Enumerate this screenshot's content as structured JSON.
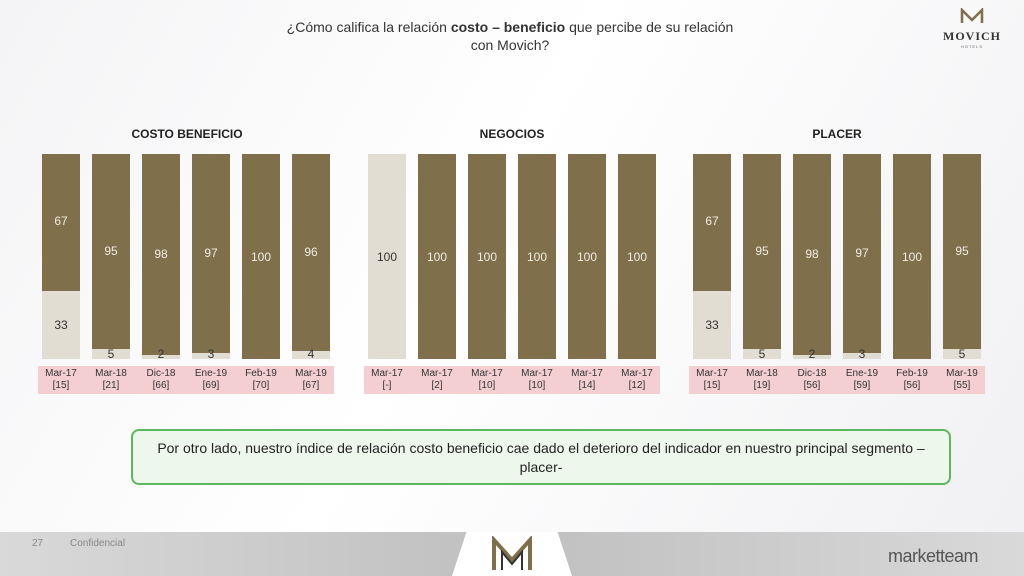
{
  "header": {
    "title_pre": "¿Cómo califica la relación ",
    "title_bold": "costo – beneficio",
    "title_post": " que percibe de su relación",
    "title_line2": "con Movich?"
  },
  "logo": {
    "word": "MOVICH",
    "sub": "HOTELS"
  },
  "callout": {
    "text": "Por otro lado, nuestro índice de relación costo beneficio cae dado el deterioro del indicador en nuestro principal segmento – placer-"
  },
  "footer": {
    "page": "27",
    "confidential": "Confidencial",
    "brand": "marketteam"
  },
  "colors": {
    "top": "#7f6f4b",
    "bottom": "#e2ddd3",
    "label_strip": "#f4cfd2",
    "callout_border": "#5cb85c"
  },
  "chart_data": [
    {
      "type": "bar",
      "stacked": true,
      "title": "COSTO BENEFICIO",
      "categories": [
        "Mar-17",
        "Mar-18",
        "Dic-18",
        "Ene-19",
        "Feb-19",
        "Mar-19"
      ],
      "bases": [
        "[15]",
        "[21]",
        "[66]",
        "[69]",
        "[70]",
        "[67]"
      ],
      "series": [
        {
          "values": [
            67,
            95,
            98,
            97,
            100,
            96
          ]
        },
        {
          "values": [
            33,
            5,
            2,
            3,
            null,
            4
          ]
        }
      ]
    },
    {
      "type": "bar",
      "stacked": true,
      "title": "NEGOCIOS",
      "categories": [
        "Mar-17",
        "Mar-17",
        "Mar-17",
        "Mar-17",
        "Mar-17",
        "Mar-17"
      ],
      "bases": [
        "[-]",
        "[2]",
        "[10]",
        "[10]",
        "[14]",
        "[12]"
      ],
      "series": [
        {
          "values": [
            null,
            100,
            100,
            100,
            100,
            100
          ]
        },
        {
          "values": [
            100,
            null,
            null,
            null,
            null,
            null
          ]
        }
      ]
    },
    {
      "type": "bar",
      "stacked": true,
      "title": "PLACER",
      "categories": [
        "Mar-17",
        "Mar-18",
        "Dic-18",
        "Ene-19",
        "Feb-19",
        "Mar-19"
      ],
      "bases": [
        "[15]",
        "[19]",
        "[56]",
        "[59]",
        "[56]",
        "[55]"
      ],
      "series": [
        {
          "values": [
            67,
            95,
            98,
            97,
            100,
            95
          ]
        },
        {
          "values": [
            33,
            5,
            2,
            3,
            null,
            5
          ]
        }
      ]
    }
  ]
}
